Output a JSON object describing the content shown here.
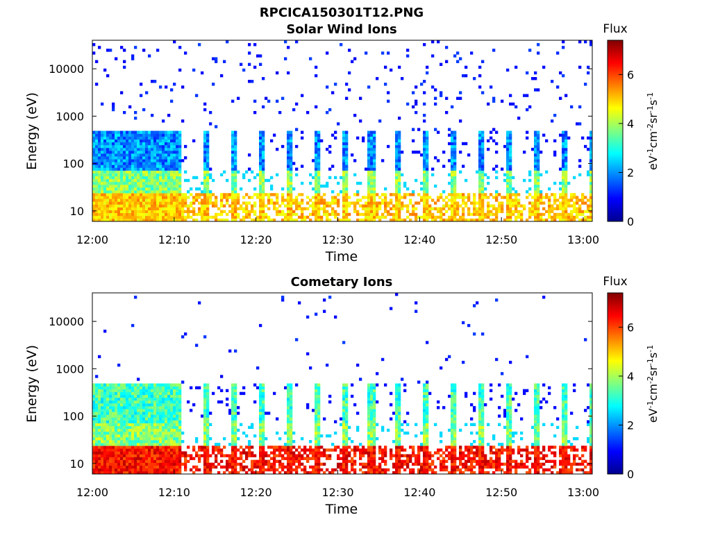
{
  "figure": {
    "title": "RPCICA150301T12.PNG"
  },
  "chart_data": [
    {
      "type": "heatmap",
      "title": "Solar Wind Ions",
      "xlabel": "Time",
      "ylabel": "Energy (eV)",
      "y_scale": "log",
      "ylim": [
        6,
        40000
      ],
      "x_ticks": [
        "12:00",
        "12:10",
        "12:20",
        "12:30",
        "12:40",
        "12:50",
        "13:00"
      ],
      "y_ticks": [
        "10",
        "100",
        "1000",
        "10000"
      ],
      "y_tick_values": [
        10,
        100,
        1000,
        10000
      ],
      "colorbar": {
        "title": "Flux",
        "label": "eV-1cm-2sr-1s-1",
        "ticks": [
          0,
          2,
          4,
          6
        ],
        "range": [
          0,
          7.4
        ],
        "colormap": "jet"
      },
      "descr": "Ion energy spectrogram; dense band near 10–40 eV with periodic bursts every ~3 min"
    },
    {
      "type": "heatmap",
      "title": "Cometary Ions",
      "xlabel": "Time",
      "ylabel": "Energy (eV)",
      "y_scale": "log",
      "ylim": [
        6,
        40000
      ],
      "x_ticks": [
        "12:00",
        "12:10",
        "12:20",
        "12:30",
        "12:40",
        "12:50",
        "13:00"
      ],
      "y_ticks": [
        "10",
        "100",
        "1000",
        "10000"
      ],
      "y_tick_values": [
        10,
        100,
        1000,
        10000
      ],
      "colorbar": {
        "title": "Flux",
        "label": "eV-1cm-2sr-1s-1",
        "ticks": [
          0,
          2,
          4,
          6
        ],
        "range": [
          0,
          7.4
        ],
        "colormap": "jet"
      },
      "descr": "Ion energy spectrogram; high flux (red) near 10–40 eV with periodic vertical bursts up to ~1000 eV"
    }
  ]
}
